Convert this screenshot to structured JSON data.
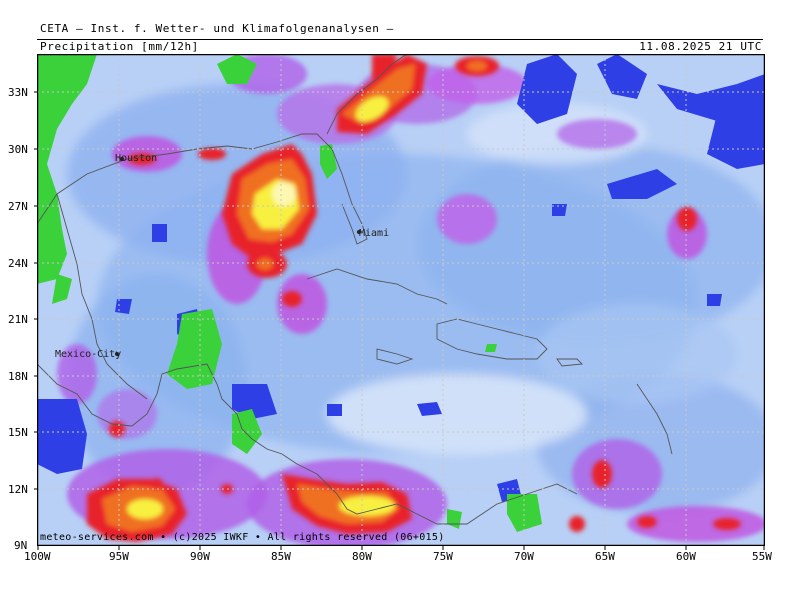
{
  "header": {
    "title": "CETA — Inst. f. Wetter- und Klimafolgenanalysen —",
    "parameter": "Precipitation [mm/12h]",
    "valid_time": "11.08.2025 21 UTC"
  },
  "map": {
    "lat_labels": [
      "33N",
      "30N",
      "27N",
      "24N",
      "21N",
      "18N",
      "15N",
      "12N",
      "9N"
    ],
    "lon_labels": [
      "100W",
      "95W",
      "90W",
      "85W",
      "80W",
      "75W",
      "70W",
      "65W",
      "60W",
      "55W"
    ],
    "cities": [
      {
        "name": "Houston"
      },
      {
        "name": "Miami"
      },
      {
        "name": "Mexico-City"
      }
    ],
    "colors": {
      "background_light": "#c8dcf8",
      "light_blue": "#a0c0f0",
      "blue": "#6f9ff0",
      "deep_blue": "#2f3fe6",
      "green": "#3ad13a",
      "violet": "#b060e8",
      "magenta": "#e040e0",
      "red": "#e8202c",
      "orange": "#f07020",
      "yellow": "#f8f040",
      "pale_yellow": "#fcf8b0"
    }
  },
  "footer": {
    "copyright": "meteo-services.com • (c)2025 IWKF • All rights reserved (06+015)"
  }
}
